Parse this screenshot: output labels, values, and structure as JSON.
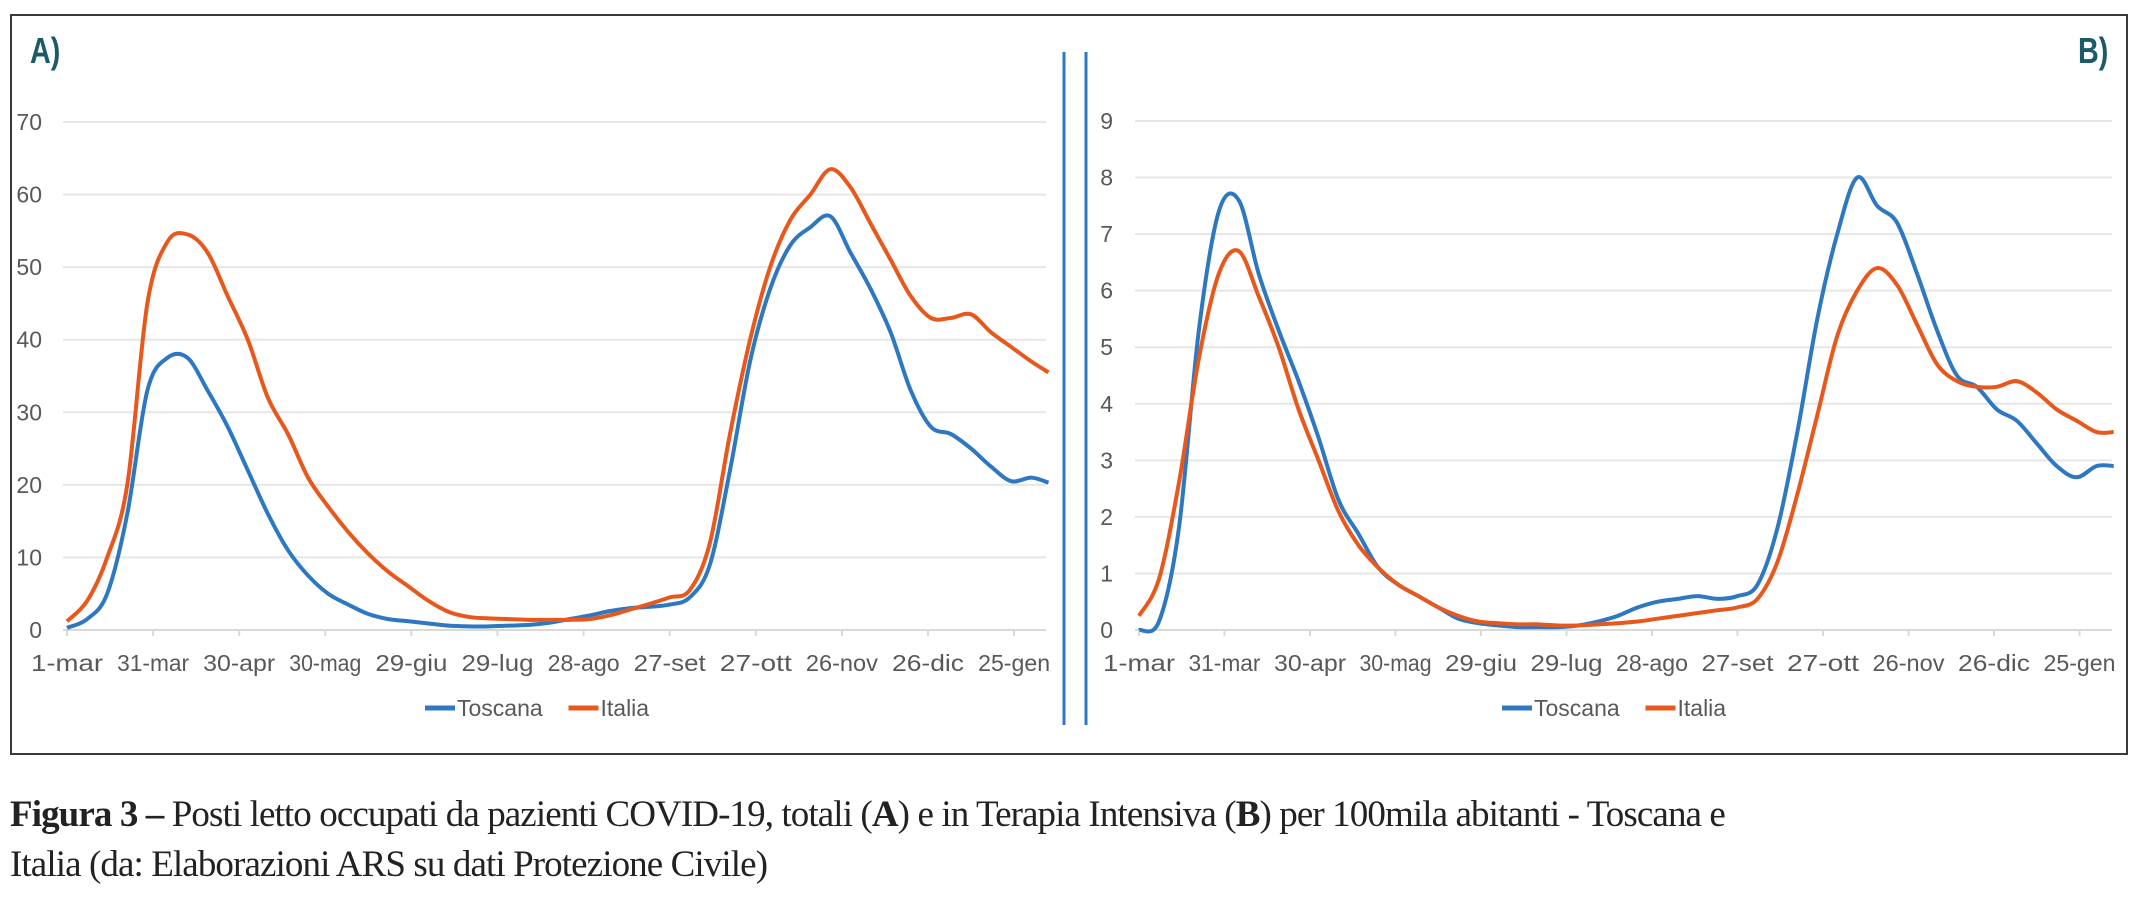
{
  "panels": {
    "a_label": "A)",
    "b_label": "B)"
  },
  "caption": {
    "figure_label": "Figura 3 –",
    "text1": " Posti letto occupati da pazienti COVID-19, totali (",
    "a": "A",
    "text2": ") e in Terapia Intensiva (",
    "b": "B",
    "text3": ") per 100mila abitanti - Toscana e",
    "line2": "Italia (da: Elaborazioni ARS su dati Protezione Civile)"
  },
  "colors": {
    "Toscana": "#2e78c2",
    "Italia": "#e8581c",
    "divider": "#2e78c2",
    "panel_label": "#1b5a6b"
  },
  "chart_data": [
    {
      "type": "line",
      "panel": "A)",
      "ylim": [
        0,
        70
      ],
      "yticks": [
        0,
        10,
        20,
        30,
        40,
        50,
        60,
        70
      ],
      "xtick_labels": [
        "1-mar",
        "31-mar",
        "30-apr",
        "30-mag",
        "29-giu",
        "29-lug",
        "28-ago",
        "27-set",
        "27-ott",
        "26-nov",
        "26-dic",
        "25-gen"
      ],
      "xtick_dates": [
        "2020-03-01",
        "2020-03-31",
        "2020-04-30",
        "2020-05-30",
        "2020-06-29",
        "2020-07-29",
        "2020-08-28",
        "2020-09-27",
        "2020-10-27",
        "2020-11-26",
        "2020-12-26",
        "2021-01-25"
      ],
      "grid": true,
      "legend": "bottom",
      "x": [
        "2020-03-01",
        "2020-03-08",
        "2020-03-15",
        "2020-03-22",
        "2020-03-29",
        "2020-04-05",
        "2020-04-12",
        "2020-04-19",
        "2020-04-26",
        "2020-05-03",
        "2020-05-10",
        "2020-05-17",
        "2020-05-24",
        "2020-05-31",
        "2020-06-07",
        "2020-06-14",
        "2020-06-21",
        "2020-06-28",
        "2020-07-05",
        "2020-07-12",
        "2020-07-19",
        "2020-07-26",
        "2020-08-02",
        "2020-08-09",
        "2020-08-16",
        "2020-08-23",
        "2020-08-30",
        "2020-09-06",
        "2020-09-13",
        "2020-09-20",
        "2020-09-27",
        "2020-10-04",
        "2020-10-11",
        "2020-10-18",
        "2020-10-25",
        "2020-11-01",
        "2020-11-08",
        "2020-11-15",
        "2020-11-22",
        "2020-11-29",
        "2020-12-06",
        "2020-12-13",
        "2020-12-20",
        "2020-12-27",
        "2021-01-03",
        "2021-01-10",
        "2021-01-17",
        "2021-01-24",
        "2021-01-31",
        "2021-02-06"
      ],
      "series": [
        {
          "name": "Toscana",
          "values": [
            0.3,
            1.5,
            5,
            16,
            33,
            37.5,
            37.5,
            33,
            28,
            22,
            16,
            11,
            7.5,
            5,
            3.5,
            2.2,
            1.5,
            1.2,
            0.9,
            0.6,
            0.5,
            0.5,
            0.6,
            0.7,
            1.0,
            1.5,
            2.0,
            2.6,
            3.0,
            3.2,
            3.5,
            4.5,
            9,
            22,
            37,
            47,
            53,
            55.5,
            57,
            52,
            47,
            41,
            33,
            28,
            27,
            25,
            22.5,
            20.5,
            21,
            20.3
          ]
        },
        {
          "name": "Italia",
          "values": [
            1.2,
            4,
            10,
            20,
            45,
            53.5,
            54.5,
            52,
            46,
            40,
            32,
            27,
            21,
            17,
            13.5,
            10.5,
            8,
            6,
            4,
            2.5,
            1.8,
            1.6,
            1.5,
            1.4,
            1.4,
            1.4,
            1.5,
            2.0,
            2.8,
            3.6,
            4.5,
            5.5,
            12,
            27,
            40,
            50,
            56.5,
            60,
            63.5,
            61,
            56,
            51,
            46,
            43,
            43,
            43.5,
            41,
            39,
            37,
            35.5
          ]
        }
      ]
    },
    {
      "type": "line",
      "panel": "B)",
      "ylim": [
        0,
        9
      ],
      "yticks": [
        0,
        1,
        2,
        3,
        4,
        5,
        6,
        7,
        8,
        9
      ],
      "xtick_labels": [
        "1-mar",
        "31-mar",
        "30-apr",
        "30-mag",
        "29-giu",
        "29-lug",
        "28-ago",
        "27-set",
        "27-ott",
        "26-nov",
        "26-dic",
        "25-gen"
      ],
      "xtick_dates": [
        "2020-03-01",
        "2020-03-31",
        "2020-04-30",
        "2020-05-30",
        "2020-06-29",
        "2020-07-29",
        "2020-08-28",
        "2020-09-27",
        "2020-10-27",
        "2020-11-26",
        "2020-12-26",
        "2021-01-25"
      ],
      "grid": true,
      "legend": "bottom",
      "x": [
        "2020-03-01",
        "2020-03-08",
        "2020-03-15",
        "2020-03-22",
        "2020-03-29",
        "2020-04-05",
        "2020-04-12",
        "2020-04-19",
        "2020-04-26",
        "2020-05-03",
        "2020-05-10",
        "2020-05-17",
        "2020-05-24",
        "2020-05-31",
        "2020-06-07",
        "2020-06-14",
        "2020-06-21",
        "2020-06-28",
        "2020-07-05",
        "2020-07-12",
        "2020-07-19",
        "2020-07-26",
        "2020-08-02",
        "2020-08-09",
        "2020-08-16",
        "2020-08-23",
        "2020-08-30",
        "2020-09-06",
        "2020-09-13",
        "2020-09-20",
        "2020-09-27",
        "2020-10-04",
        "2020-10-11",
        "2020-10-18",
        "2020-10-25",
        "2020-11-01",
        "2020-11-08",
        "2020-11-15",
        "2020-11-22",
        "2020-11-29",
        "2020-12-06",
        "2020-12-13",
        "2020-12-20",
        "2020-12-27",
        "2021-01-03",
        "2021-01-10",
        "2021-01-17",
        "2021-01-24",
        "2021-01-31",
        "2021-02-06"
      ],
      "series": [
        {
          "name": "Toscana",
          "values": [
            0,
            0.15,
            1.8,
            5.3,
            7.4,
            7.6,
            6.3,
            5.3,
            4.4,
            3.4,
            2.3,
            1.7,
            1.1,
            0.8,
            0.6,
            0.4,
            0.2,
            0.12,
            0.08,
            0.05,
            0.05,
            0.05,
            0.08,
            0.15,
            0.25,
            0.4,
            0.5,
            0.55,
            0.6,
            0.55,
            0.6,
            0.8,
            1.8,
            3.5,
            5.5,
            7.0,
            8.0,
            7.5,
            7.2,
            6.3,
            5.3,
            4.5,
            4.3,
            3.9,
            3.7,
            3.3,
            2.9,
            2.7,
            2.9,
            2.9
          ]
        },
        {
          "name": "Italia",
          "values": [
            0.25,
            0.9,
            2.6,
            4.8,
            6.3,
            6.7,
            5.9,
            5.0,
            3.9,
            3.0,
            2.1,
            1.5,
            1.1,
            0.8,
            0.6,
            0.4,
            0.25,
            0.15,
            0.12,
            0.1,
            0.1,
            0.08,
            0.08,
            0.1,
            0.12,
            0.15,
            0.2,
            0.25,
            0.3,
            0.35,
            0.4,
            0.55,
            1.2,
            2.4,
            3.8,
            5.2,
            6.0,
            6.4,
            6.1,
            5.4,
            4.7,
            4.4,
            4.3,
            4.3,
            4.4,
            4.2,
            3.9,
            3.7,
            3.5,
            3.5
          ]
        }
      ]
    }
  ]
}
